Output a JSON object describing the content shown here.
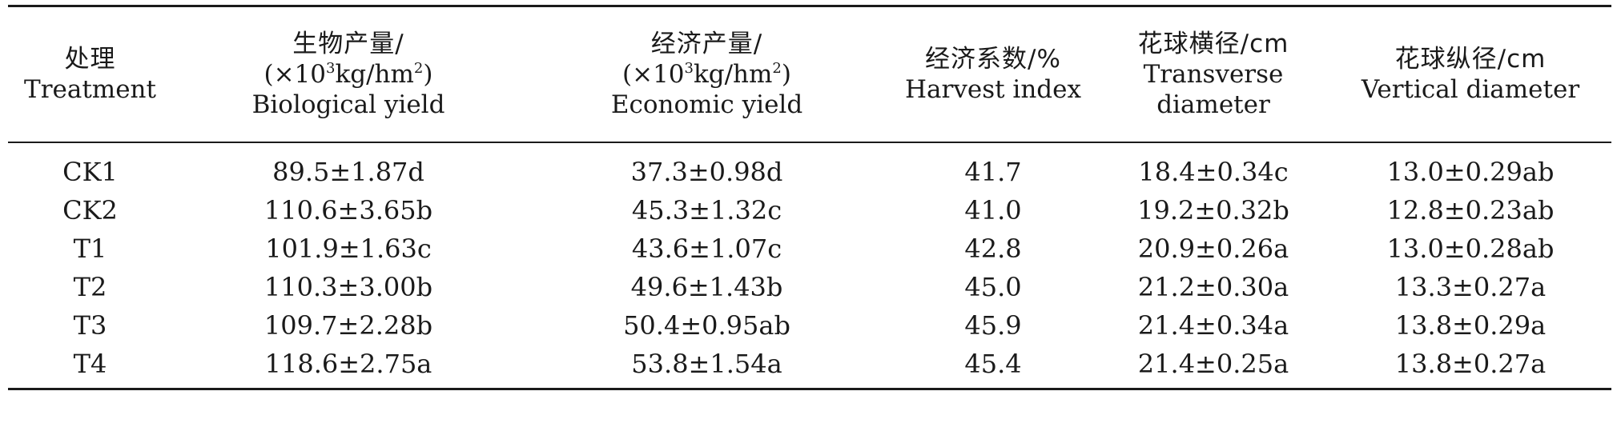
{
  "table": {
    "headers": [
      {
        "key": "treatment",
        "zh": "处理",
        "en": [
          "Treatment"
        ]
      },
      {
        "key": "biological_yield",
        "zh": "生物产量/",
        "unit_pre": "(×10",
        "unit_sup1": "3",
        "unit_mid": "kg/hm",
        "unit_sup2": "2",
        "unit_post": ")",
        "en": [
          "Biological yield"
        ]
      },
      {
        "key": "economic_yield",
        "zh": "经济产量/",
        "unit_pre": "(×10",
        "unit_sup1": "3",
        "unit_mid": "kg/hm",
        "unit_sup2": "2",
        "unit_post": ")",
        "en": [
          "Economic yield"
        ]
      },
      {
        "key": "harvest_index",
        "zh": "经济系数/%",
        "en": [
          "Harvest index"
        ]
      },
      {
        "key": "transverse_diameter",
        "zh": "花球横径/cm",
        "en": [
          "Transverse",
          "diameter"
        ]
      },
      {
        "key": "vertical_diameter",
        "zh": "花球纵径/cm",
        "en": [
          "Vertical diameter"
        ]
      }
    ],
    "rows": [
      [
        "CK1",
        "89.5±1.87d",
        "37.3±0.98d",
        "41.7",
        "18.4±0.34c",
        "13.0±0.29ab"
      ],
      [
        "CK2",
        "110.6±3.65b",
        "45.3±1.32c",
        "41.0",
        "19.2±0.32b",
        "12.8±0.23ab"
      ],
      [
        "T1",
        "101.9±1.63c",
        "43.6±1.07c",
        "42.8",
        "20.9±0.26a",
        "13.0±0.28ab"
      ],
      [
        "T2",
        "110.3±3.00b",
        "49.6±1.43b",
        "45.0",
        "21.2±0.30a",
        "13.3±0.27a"
      ],
      [
        "T3",
        "109.7±2.28b",
        "50.4±0.95ab",
        "45.9",
        "21.4±0.34a",
        "13.8±0.29a"
      ],
      [
        "T4",
        "118.6±2.75a",
        "53.8±1.54a",
        "45.4",
        "21.4±0.25a",
        "13.8±0.27a"
      ]
    ]
  }
}
